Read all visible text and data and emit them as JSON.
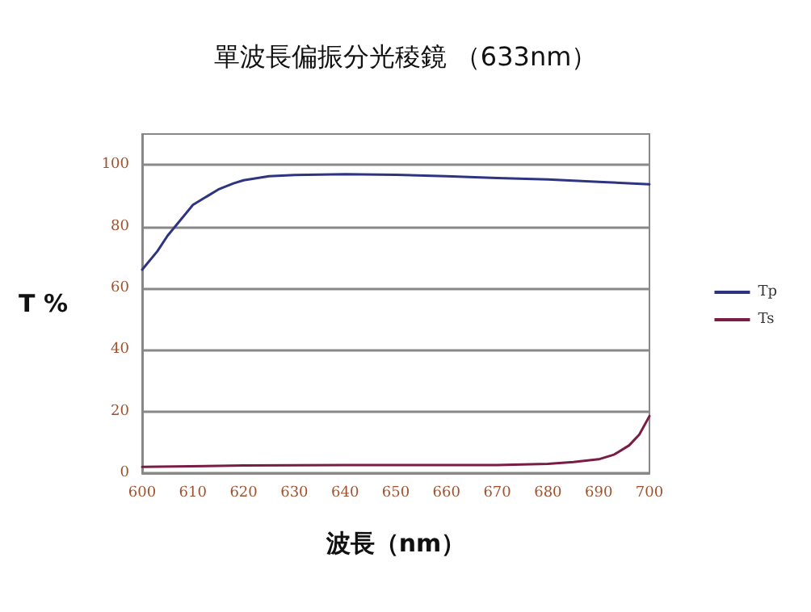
{
  "chart_data": {
    "type": "line",
    "title": "單波長偏振分光稜鏡 （633nm）",
    "xlabel": "波長（nm）",
    "ylabel": "T %",
    "xlim": [
      600,
      700
    ],
    "xticks": [
      600,
      610,
      620,
      630,
      640,
      650,
      660,
      670,
      680,
      690,
      700
    ],
    "ylim": [
      0,
      110
    ],
    "yticks": [
      0,
      20,
      40,
      60,
      80,
      100
    ],
    "grid": "y",
    "legend": "right",
    "marker": "none",
    "line_style": "solid",
    "series": [
      {
        "name": "Tp",
        "color": "#2e3580",
        "x": [
          600,
          603,
          605,
          607,
          610,
          613,
          615,
          618,
          620,
          625,
          630,
          640,
          650,
          660,
          670,
          680,
          690,
          700
        ],
        "values": [
          66,
          72,
          77,
          81,
          87,
          90,
          92,
          94,
          95,
          96.3,
          96.7,
          97,
          96.8,
          96.3,
          95.7,
          95.3,
          94.5,
          93.7
        ]
      },
      {
        "name": "Ts",
        "color": "#7a1d46",
        "x": [
          600,
          620,
          640,
          660,
          670,
          680,
          685,
          690,
          693,
          696,
          698,
          700
        ],
        "values": [
          2,
          2.5,
          2.6,
          2.6,
          2.6,
          3,
          3.6,
          4.5,
          6,
          9,
          12.5,
          18.5
        ]
      }
    ]
  }
}
